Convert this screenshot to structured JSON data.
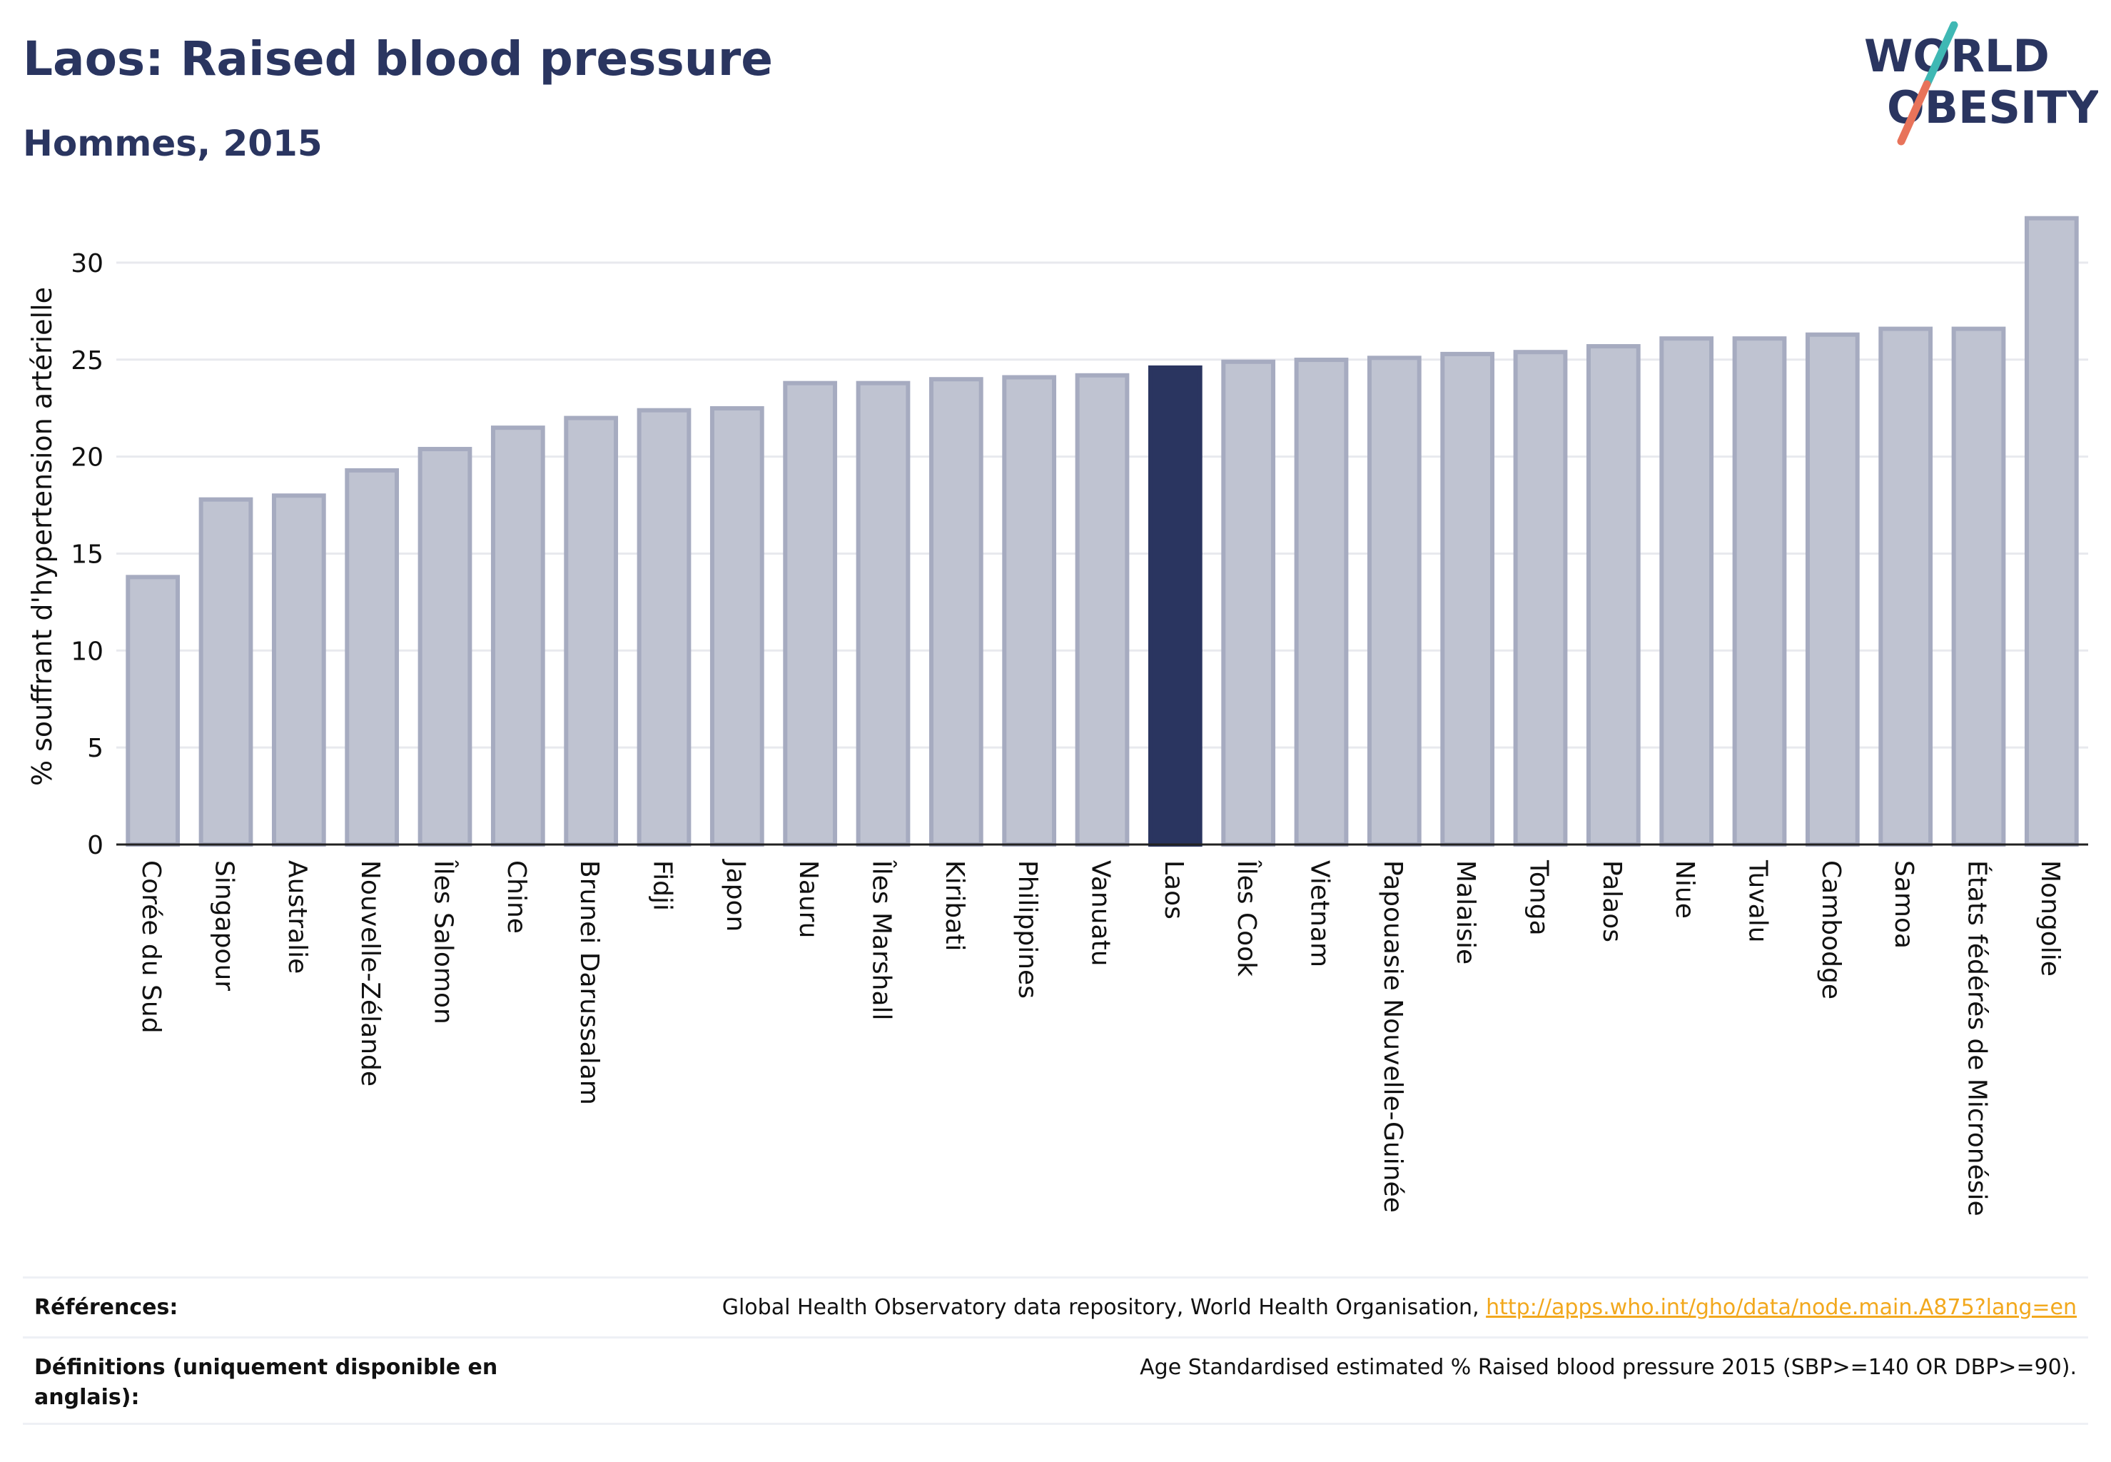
{
  "header": {
    "title": "Laos: Raised blood pressure",
    "subtitle": "Hommes, 2015"
  },
  "logo": {
    "line1": "WORLD",
    "line2": "OBESITY",
    "text_color": "#2a3560",
    "slash_color_top": "#3fb8b4",
    "slash_color_bottom": "#e8735a"
  },
  "colors": {
    "bar_fill": "#bfc3d1",
    "bar_stroke": "#a6abc0",
    "highlight_fill": "#2a3560",
    "axis_text": "#111111",
    "grid": "#e8e9ee"
  },
  "chart_data": {
    "type": "bar",
    "title": "Laos: Raised blood pressure",
    "subtitle": "Hommes, 2015",
    "ylabel": "% souffrant d'hypertension artérielle",
    "xlabel": "",
    "ylim": [
      0,
      32.5
    ],
    "yticks": [
      0,
      5,
      10,
      15,
      20,
      25,
      30
    ],
    "grid": true,
    "highlight": "Laos",
    "categories": [
      "Corée du Sud",
      "Singapour",
      "Australie",
      "Nouvelle-Zélande",
      "Îles Salomon",
      "Chine",
      "Brunei Darussalam",
      "Fidji",
      "Japon",
      "Nauru",
      "Îles Marshall",
      "Kiribati",
      "Philippines",
      "Vanuatu",
      "Laos",
      "Îles Cook",
      "Vietnam",
      "Papouasie Nouvelle-Guinée",
      "Malaisie",
      "Tonga",
      "Palaos",
      "Niue",
      "Tuvalu",
      "Cambodge",
      "Samoa",
      "États fédérés de Micronésie",
      "Mongolie"
    ],
    "values": [
      13.9,
      17.9,
      18.1,
      19.4,
      20.5,
      21.6,
      22.1,
      22.5,
      22.6,
      23.9,
      23.9,
      24.1,
      24.2,
      24.3,
      24.7,
      25.0,
      25.1,
      25.2,
      25.4,
      25.5,
      25.8,
      26.2,
      26.2,
      26.4,
      26.7,
      26.7,
      32.4
    ]
  },
  "references": {
    "label": "Références:",
    "text": "Global Health Observatory data repository, World Health Organisation, ",
    "link": "http://apps.who.int/gho/data/node.main.A875?lang=en"
  },
  "definitions": {
    "label": "Définitions (uniquement disponible en anglais):",
    "text": "Age Standardised estimated % Raised blood pressure 2015 (SBP>=140 OR DBP>=90)."
  }
}
